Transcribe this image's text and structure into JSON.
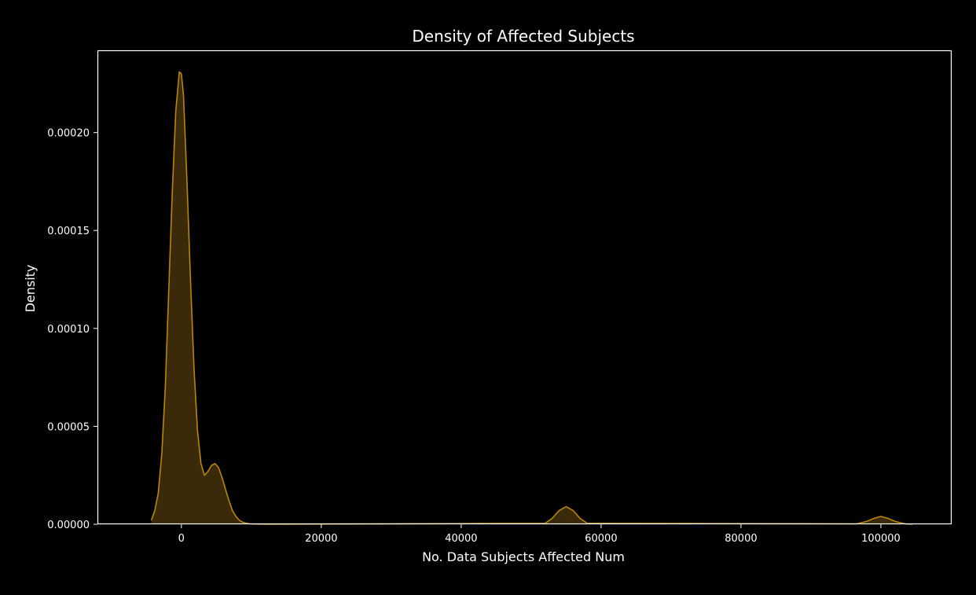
{
  "chart_data": {
    "type": "area",
    "title": "Density of Affected Subjects",
    "xlabel": "No. Data Subjects Affected Num",
    "ylabel": "Density",
    "xlim": [
      -12000,
      110000
    ],
    "ylim": [
      0,
      0.000242
    ],
    "xticks": [
      0,
      20000,
      40000,
      60000,
      80000,
      100000
    ],
    "yticks": [
      0,
      5e-05,
      0.0001,
      0.00015,
      0.0002
    ],
    "ytick_labels": [
      "0.00000",
      "0.00005",
      "0.00010",
      "0.00015",
      "0.00020"
    ],
    "grid": false,
    "colors": {
      "background": "#000000",
      "line": "#b8860b",
      "fill": "#3a2a09",
      "axes": "#ffffff",
      "text": "#ffffff"
    },
    "series": [
      {
        "x": [
          -4300,
          -3800,
          -3300,
          -2800,
          -2300,
          -1800,
          -1300,
          -800,
          -300,
          0,
          300,
          800,
          1300,
          1800,
          2300,
          2800,
          3300,
          3800,
          4300,
          4800,
          5300,
          5800,
          6300,
          6800,
          7300,
          7800,
          8300,
          8800,
          9300,
          9800,
          10500,
          12000,
          52000,
          53000,
          54000,
          55000,
          56000,
          57000,
          58000,
          96500,
          98000,
          99000,
          100000,
          101000,
          102000,
          103500,
          104500
        ],
        "y": [
          2e-06,
          7e-06,
          1.6e-05,
          3.6e-05,
          7e-05,
          0.00012,
          0.00017,
          0.000211,
          0.000231,
          0.00023,
          0.000219,
          0.000175,
          0.000125,
          8e-05,
          4.8e-05,
          3.1e-05,
          2.5e-05,
          2.7e-05,
          3e-05,
          3.1e-05,
          2.9e-05,
          2.4e-05,
          1.8e-05,
          1.2e-05,
          7e-06,
          4e-06,
          2e-06,
          1e-06,
          5e-07,
          2e-07,
          1e-07,
          0,
          5e-07,
          3e-06,
          7e-06,
          9e-06,
          7e-06,
          3e-06,
          5e-07,
          2e-07,
          1.5e-06,
          3e-06,
          4e-06,
          3e-06,
          1.5e-06,
          2e-07,
          0
        ]
      }
    ]
  }
}
